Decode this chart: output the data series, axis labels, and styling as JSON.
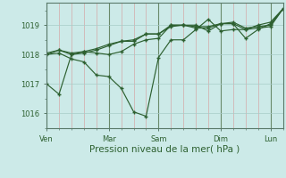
{
  "xlabel": "Pression niveau de la mer( hPa )",
  "bg_color": "#cceae8",
  "line_color": "#2d6030",
  "ylim": [
    1015.5,
    1019.75
  ],
  "yticks": [
    1016,
    1017,
    1018,
    1019
  ],
  "xlim": [
    0,
    228
  ],
  "major_xtick_positions": [
    0,
    60,
    108,
    168,
    216
  ],
  "major_xtick_labels": [
    "Ven",
    "Mar",
    "Sam",
    "Dim",
    "Lun"
  ],
  "minor_xtick_step": 12,
  "series": [
    {
      "x": [
        0,
        12,
        24,
        36,
        48,
        60,
        72,
        84,
        96,
        108,
        120,
        132,
        144,
        156,
        168,
        180,
        192,
        204,
        216,
        228
      ],
      "y": [
        1017.0,
        1016.65,
        1018.0,
        1018.1,
        1018.05,
        1018.0,
        1018.1,
        1018.35,
        1018.5,
        1018.55,
        1019.0,
        1019.0,
        1019.0,
        1018.8,
        1019.05,
        1019.05,
        1018.55,
        1018.85,
        1019.05,
        1019.55
      ]
    },
    {
      "x": [
        0,
        12,
        24,
        36,
        48,
        60,
        72,
        84,
        96,
        108,
        120,
        132,
        144,
        156,
        168,
        180,
        192,
        204,
        216,
        228
      ],
      "y": [
        1018.0,
        1018.05,
        1017.85,
        1017.75,
        1017.3,
        1017.25,
        1016.85,
        1016.05,
        1015.9,
        1017.9,
        1018.5,
        1018.5,
        1018.85,
        1019.2,
        1018.8,
        1018.85,
        1018.85,
        1019.0,
        1019.1,
        1019.55
      ]
    },
    {
      "x": [
        0,
        12,
        24,
        36,
        48,
        60,
        72,
        84,
        96,
        108,
        120,
        132,
        144,
        156,
        168,
        180,
        192,
        204,
        216,
        228
      ],
      "y": [
        1018.0,
        1018.15,
        1018.0,
        1018.05,
        1018.15,
        1018.3,
        1018.45,
        1018.45,
        1018.7,
        1018.7,
        1018.95,
        1019.0,
        1018.9,
        1018.9,
        1019.05,
        1019.05,
        1018.85,
        1018.9,
        1018.95,
        1019.55
      ]
    },
    {
      "x": [
        0,
        12,
        24,
        36,
        48,
        60,
        72,
        84,
        96,
        108,
        120,
        132,
        144,
        156,
        168,
        180,
        192,
        204,
        216,
        228
      ],
      "y": [
        1018.05,
        1018.15,
        1018.05,
        1018.1,
        1018.2,
        1018.35,
        1018.45,
        1018.5,
        1018.7,
        1018.7,
        1019.0,
        1019.0,
        1018.95,
        1018.95,
        1019.05,
        1019.1,
        1018.9,
        1018.95,
        1019.0,
        1019.55
      ]
    }
  ]
}
